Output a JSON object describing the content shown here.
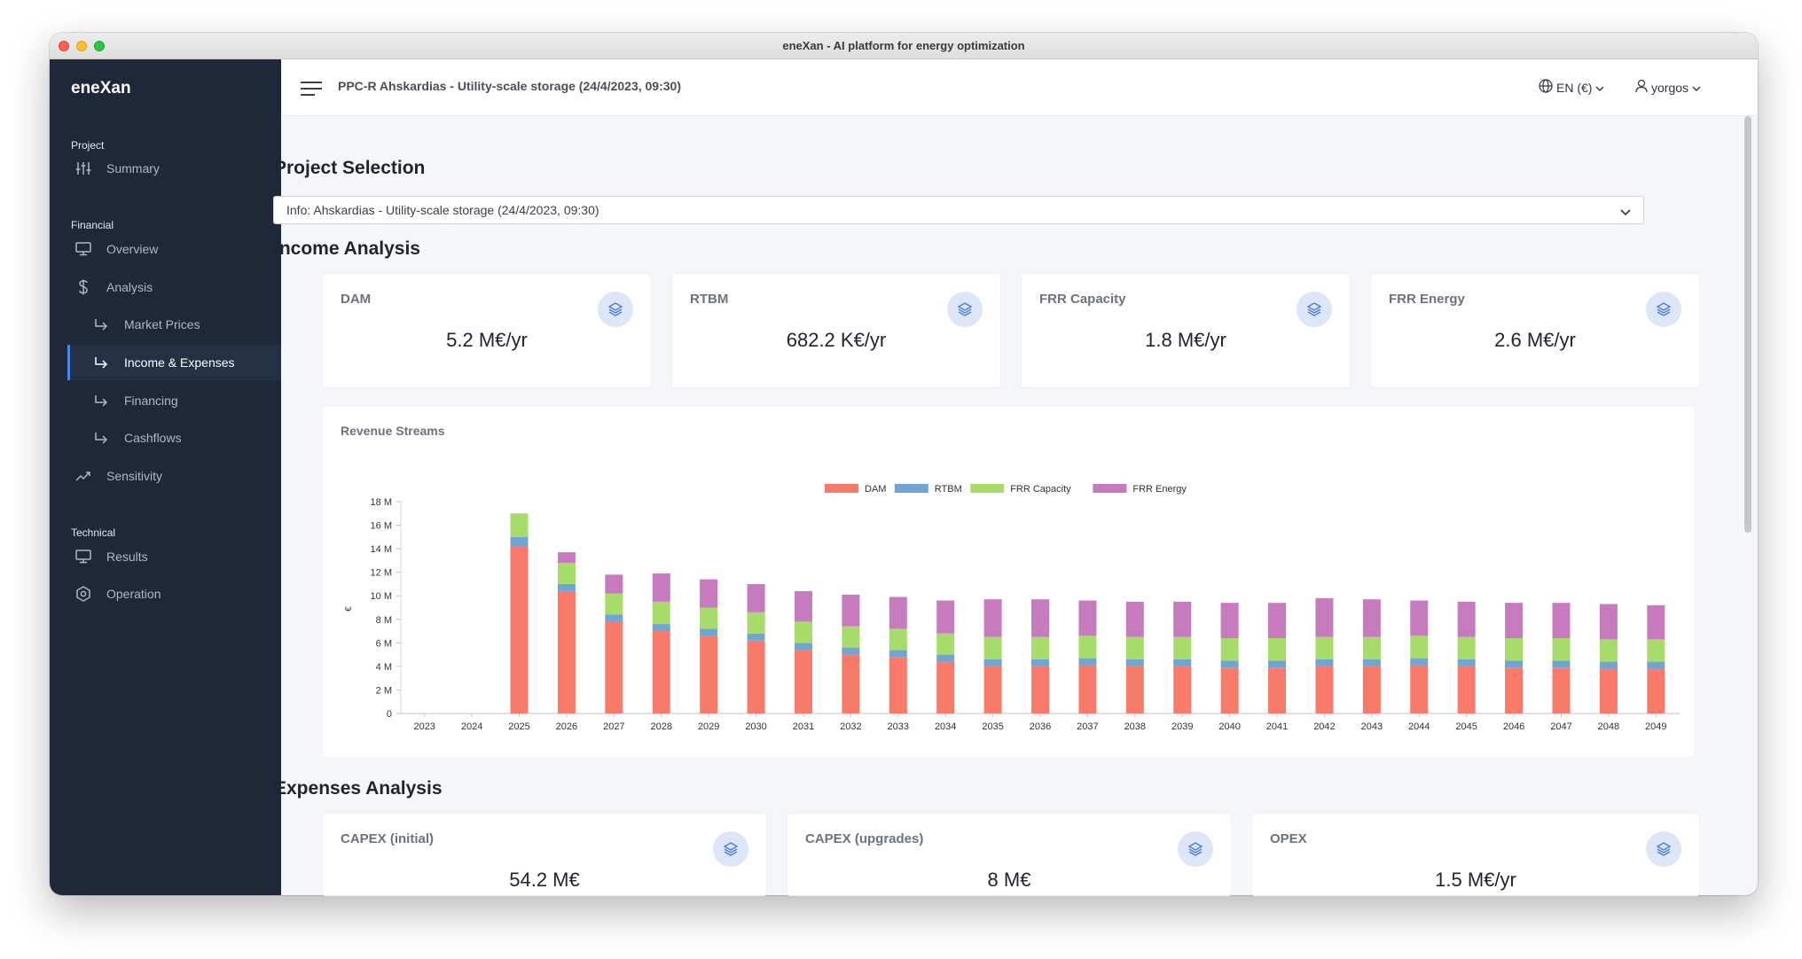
{
  "window": {
    "title": "eneXan - AI platform for energy optimization"
  },
  "sidebar": {
    "brand": "eneXan",
    "sections": {
      "project": "Project",
      "financial": "Financial",
      "technical": "Technical"
    },
    "items": {
      "summary": "Summary",
      "overview": "Overview",
      "analysis": "Analysis",
      "market_prices": "Market Prices",
      "income_expenses": "Income & Expenses",
      "financing": "Financing",
      "cashflows": "Cashflows",
      "sensitivity": "Sensitivity",
      "results": "Results",
      "operation": "Operation"
    }
  },
  "header": {
    "project": "PPC-R Ahskardias - Utility-scale storage (24/4/2023, 09:30)",
    "language": "EN (€)",
    "user": "yorgos"
  },
  "main": {
    "project_selection_title": "Project Selection",
    "project_select_value": "Info: Ahskardias - Utility-scale storage (24/4/2023, 09:30)",
    "income_title": "Income Analysis",
    "income_cards": [
      {
        "label": "DAM",
        "value": "5.2 M€/yr"
      },
      {
        "label": "RTBM",
        "value": "682.2 K€/yr"
      },
      {
        "label": "FRR Capacity",
        "value": "1.8 M€/yr"
      },
      {
        "label": "FRR Energy",
        "value": "2.6 M€/yr"
      }
    ],
    "expenses_title": "Expenses Analysis",
    "expense_cards": [
      {
        "label": "CAPEX (initial)",
        "value": "54.2 M€"
      },
      {
        "label": "CAPEX (upgrades)",
        "value": "8 M€"
      },
      {
        "label": "OPEX",
        "value": "1.5 M€/yr"
      }
    ]
  },
  "chart_title": "Revenue Streams",
  "chart_data": {
    "type": "bar",
    "stacked": true,
    "title": "Revenue Streams",
    "ylabel": "€",
    "xlabel": "",
    "ylim": [
      0,
      18000000
    ],
    "y_ticks": [
      0,
      2000000,
      4000000,
      6000000,
      8000000,
      10000000,
      12000000,
      14000000,
      16000000,
      18000000
    ],
    "y_tick_labels": [
      "0",
      "2 M",
      "4 M",
      "6 M",
      "8 M",
      "10 M",
      "12 M",
      "14 M",
      "16 M",
      "18 M"
    ],
    "legend_position": "top-center",
    "categories": [
      "2023",
      "2024",
      "2025",
      "2026",
      "2027",
      "2028",
      "2029",
      "2030",
      "2031",
      "2032",
      "2033",
      "2034",
      "2035",
      "2036",
      "2037",
      "2038",
      "2039",
      "2040",
      "2041",
      "2042",
      "2043",
      "2044",
      "2045",
      "2046",
      "2047",
      "2048",
      "2049"
    ],
    "series": [
      {
        "name": "DAM",
        "color": "#f87a6b",
        "values": [
          0,
          0,
          14.2,
          10.4,
          7.8,
          7.0,
          6.6,
          6.2,
          5.4,
          5.0,
          4.8,
          4.4,
          4.0,
          4.0,
          4.1,
          4.0,
          4.0,
          3.9,
          3.9,
          4.0,
          4.0,
          4.1,
          4.0,
          3.9,
          3.9,
          3.8,
          3.8
        ]
      },
      {
        "name": "RTBM",
        "color": "#6fa5d2",
        "values": [
          0,
          0,
          0.8,
          0.6,
          0.6,
          0.6,
          0.6,
          0.6,
          0.6,
          0.6,
          0.6,
          0.6,
          0.6,
          0.6,
          0.6,
          0.6,
          0.6,
          0.6,
          0.6,
          0.6,
          0.6,
          0.6,
          0.6,
          0.6,
          0.6,
          0.6,
          0.6
        ]
      },
      {
        "name": "FRR Capacity",
        "color": "#a8dc6a",
        "values": [
          0,
          0,
          2.0,
          1.8,
          1.8,
          1.9,
          1.8,
          1.8,
          1.8,
          1.8,
          1.8,
          1.8,
          1.9,
          1.9,
          1.9,
          1.9,
          1.9,
          1.9,
          1.9,
          1.9,
          1.9,
          1.9,
          1.9,
          1.9,
          1.9,
          1.9,
          1.9
        ]
      },
      {
        "name": "FRR Energy",
        "color": "#c67bbf",
        "values": [
          0,
          0,
          0,
          0.9,
          1.6,
          2.4,
          2.4,
          2.4,
          2.6,
          2.7,
          2.7,
          2.8,
          3.2,
          3.2,
          3.0,
          3.0,
          3.0,
          3.0,
          3.0,
          3.3,
          3.2,
          3.0,
          3.0,
          3.0,
          3.0,
          3.0,
          2.9
        ]
      }
    ],
    "value_unit": "M€"
  }
}
